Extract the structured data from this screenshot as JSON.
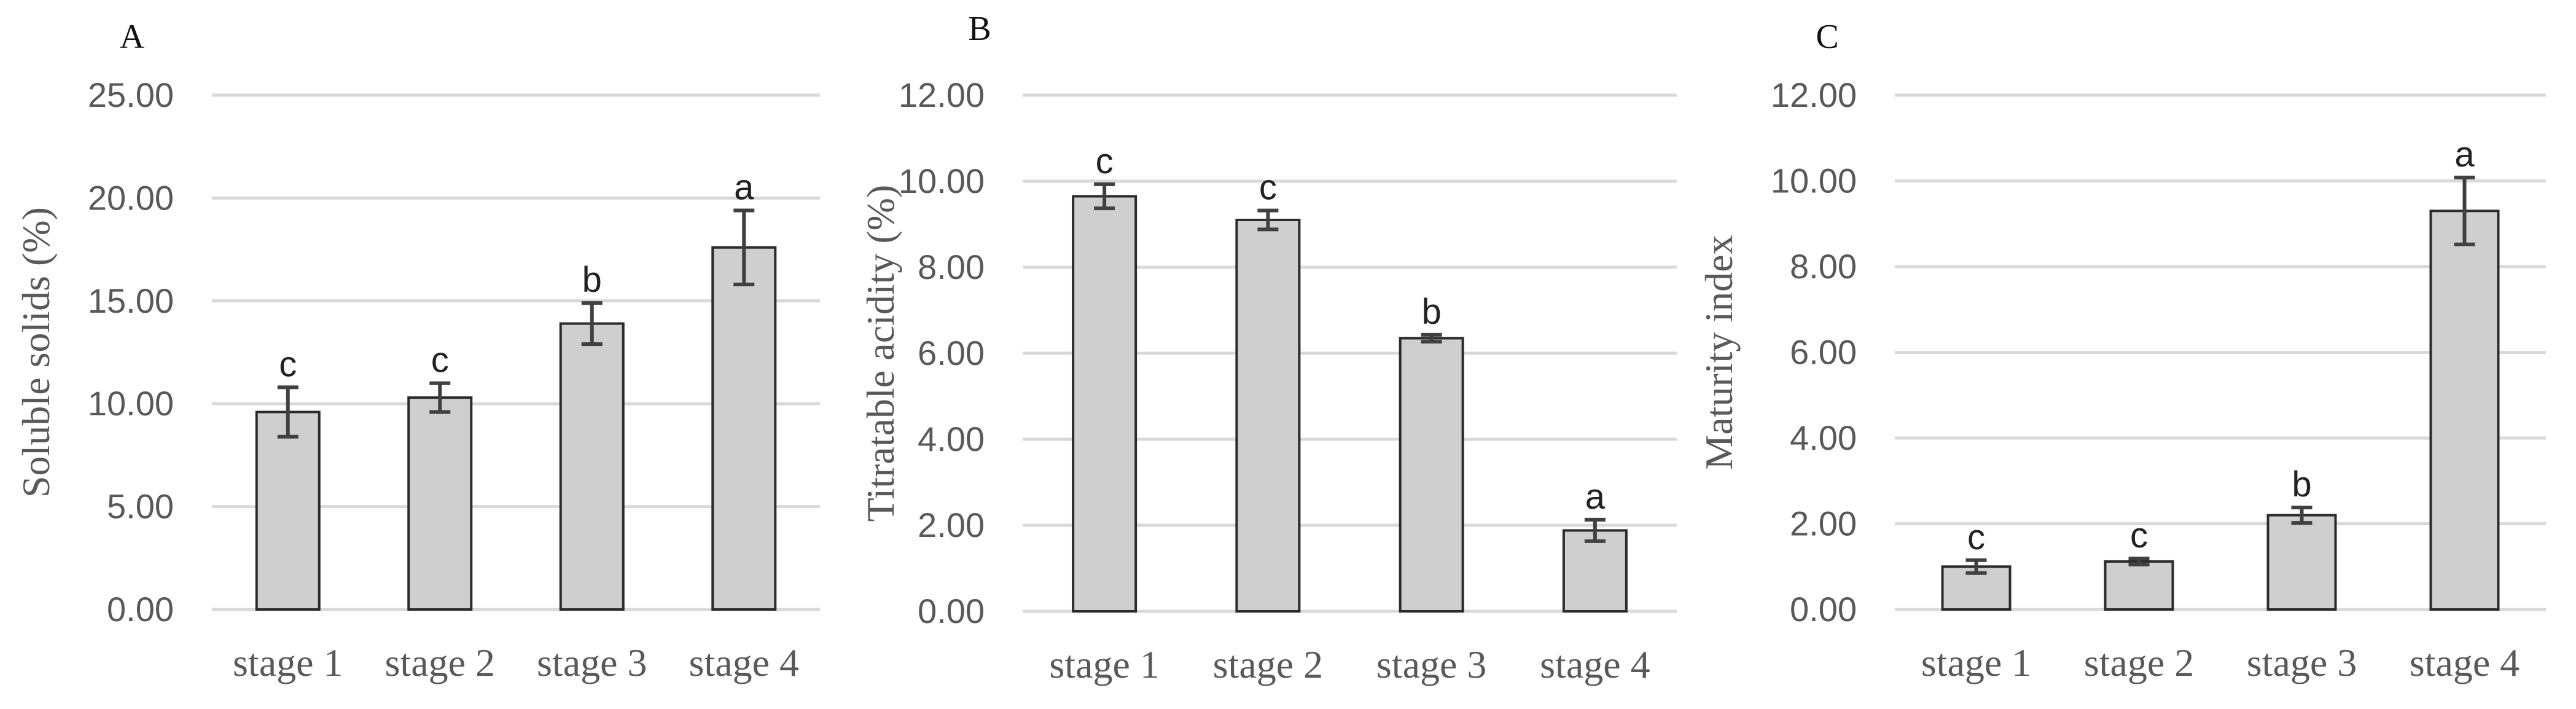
{
  "chart_data": [
    {
      "type": "bar",
      "panel_label": "A",
      "ylabel": "Soluble solids (%)",
      "xlabel": "",
      "categories": [
        "stage 1",
        "stage 2",
        "stage 3",
        "stage 4"
      ],
      "values": [
        9.6,
        10.3,
        13.9,
        17.6
      ],
      "errors": [
        1.2,
        0.7,
        1.0,
        1.8
      ],
      "significance": [
        "c",
        "c",
        "b",
        "a"
      ],
      "ylim": [
        0,
        25
      ],
      "yticks": [
        "0.00",
        "5.00",
        "10.00",
        "15.00",
        "20.00",
        "25.00"
      ],
      "grid": true,
      "bar_color": "#cfcfcf"
    },
    {
      "type": "bar",
      "panel_label": "B",
      "ylabel": "Titratable acidity (%)",
      "xlabel": "",
      "categories": [
        "stage 1",
        "stage 2",
        "stage 3",
        "stage 4"
      ],
      "values": [
        9.65,
        9.1,
        6.35,
        1.88
      ],
      "errors": [
        0.28,
        0.22,
        0.08,
        0.25
      ],
      "significance": [
        "c",
        "c",
        "b",
        "a"
      ],
      "ylim": [
        0,
        12
      ],
      "yticks": [
        "0.00",
        "2.00",
        "4.00",
        "6.00",
        "8.00",
        "10.00",
        "12.00"
      ],
      "grid": true,
      "bar_color": "#cfcfcf"
    },
    {
      "type": "bar",
      "panel_label": "C",
      "ylabel": "Maturity index",
      "xlabel": "",
      "categories": [
        "stage 1",
        "stage 2",
        "stage 3",
        "stage 4"
      ],
      "values": [
        1.0,
        1.12,
        2.2,
        9.3
      ],
      "errors": [
        0.15,
        0.07,
        0.18,
        0.78
      ],
      "significance": [
        "c",
        "c",
        "b",
        "a"
      ],
      "ylim": [
        0,
        12
      ],
      "yticks": [
        "0.00",
        "2.00",
        "4.00",
        "6.00",
        "8.00",
        "10.00",
        "12.00"
      ],
      "grid": true,
      "bar_color": "#cfcfcf"
    }
  ]
}
